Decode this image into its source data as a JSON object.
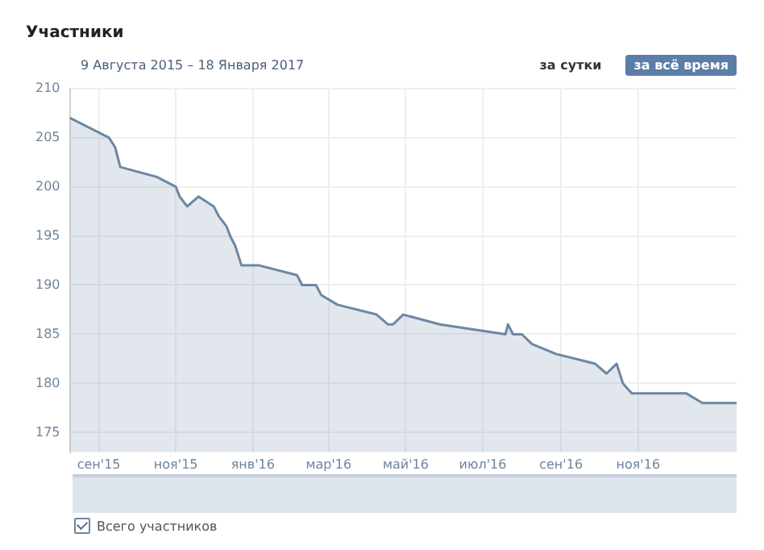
{
  "chart_data": {
    "type": "area",
    "title": "Участники",
    "subtitle": "9 Августа 2015 – 18 Января 2017",
    "annotations": [
      "за сутки",
      "за всё время"
    ],
    "x": [
      "2015-08-09",
      "2015-09-09",
      "2015-09-14",
      "2015-09-18",
      "2015-10-17",
      "2015-11-01",
      "2015-11-04",
      "2015-11-10",
      "2015-11-19",
      "2015-12-01",
      "2015-12-05",
      "2015-12-11",
      "2015-12-14",
      "2015-12-18",
      "2015-12-23",
      "2016-01-06",
      "2016-02-05",
      "2016-02-09",
      "2016-02-20",
      "2016-02-24",
      "2016-03-08",
      "2016-04-08",
      "2016-04-17",
      "2016-04-21",
      "2016-04-29",
      "2016-05-28",
      "2016-07-19",
      "2016-07-21",
      "2016-07-25",
      "2016-08-01",
      "2016-08-09",
      "2016-08-28",
      "2016-09-28",
      "2016-10-07",
      "2016-10-15",
      "2016-10-20",
      "2016-10-27",
      "2016-12-09",
      "2016-12-22",
      "2017-01-18"
    ],
    "series": [
      {
        "name": "Всего участников",
        "color": "#6d87a3",
        "values": [
          207,
          205,
          204,
          202,
          201,
          200,
          199,
          198,
          199,
          198,
          197,
          196,
          195,
          194,
          192,
          192,
          191,
          190,
          190,
          189,
          188,
          187,
          186,
          186,
          187,
          186,
          185,
          186,
          185,
          185,
          184,
          183,
          182,
          181,
          182,
          180,
          179,
          179,
          178,
          178
        ]
      }
    ],
    "xlim": [
      "2015-08-09",
      "2017-01-18"
    ],
    "xticks": [
      {
        "value": "2015-09-01",
        "label": "сен'15"
      },
      {
        "value": "2015-11-01",
        "label": "ноя'15"
      },
      {
        "value": "2016-01-01",
        "label": "янв'16"
      },
      {
        "value": "2016-03-01",
        "label": "мар'16"
      },
      {
        "value": "2016-05-01",
        "label": "май'16"
      },
      {
        "value": "2016-07-01",
        "label": "июл'16"
      },
      {
        "value": "2016-09-01",
        "label": "сен'16"
      },
      {
        "value": "2016-11-01",
        "label": "ноя'16"
      }
    ],
    "ylim": [
      173,
      210
    ],
    "yticks": [
      175,
      180,
      185,
      190,
      195,
      200,
      205,
      210
    ],
    "grid": true,
    "legend": "bottom left",
    "marker": "none",
    "line_style": "solid"
  }
}
